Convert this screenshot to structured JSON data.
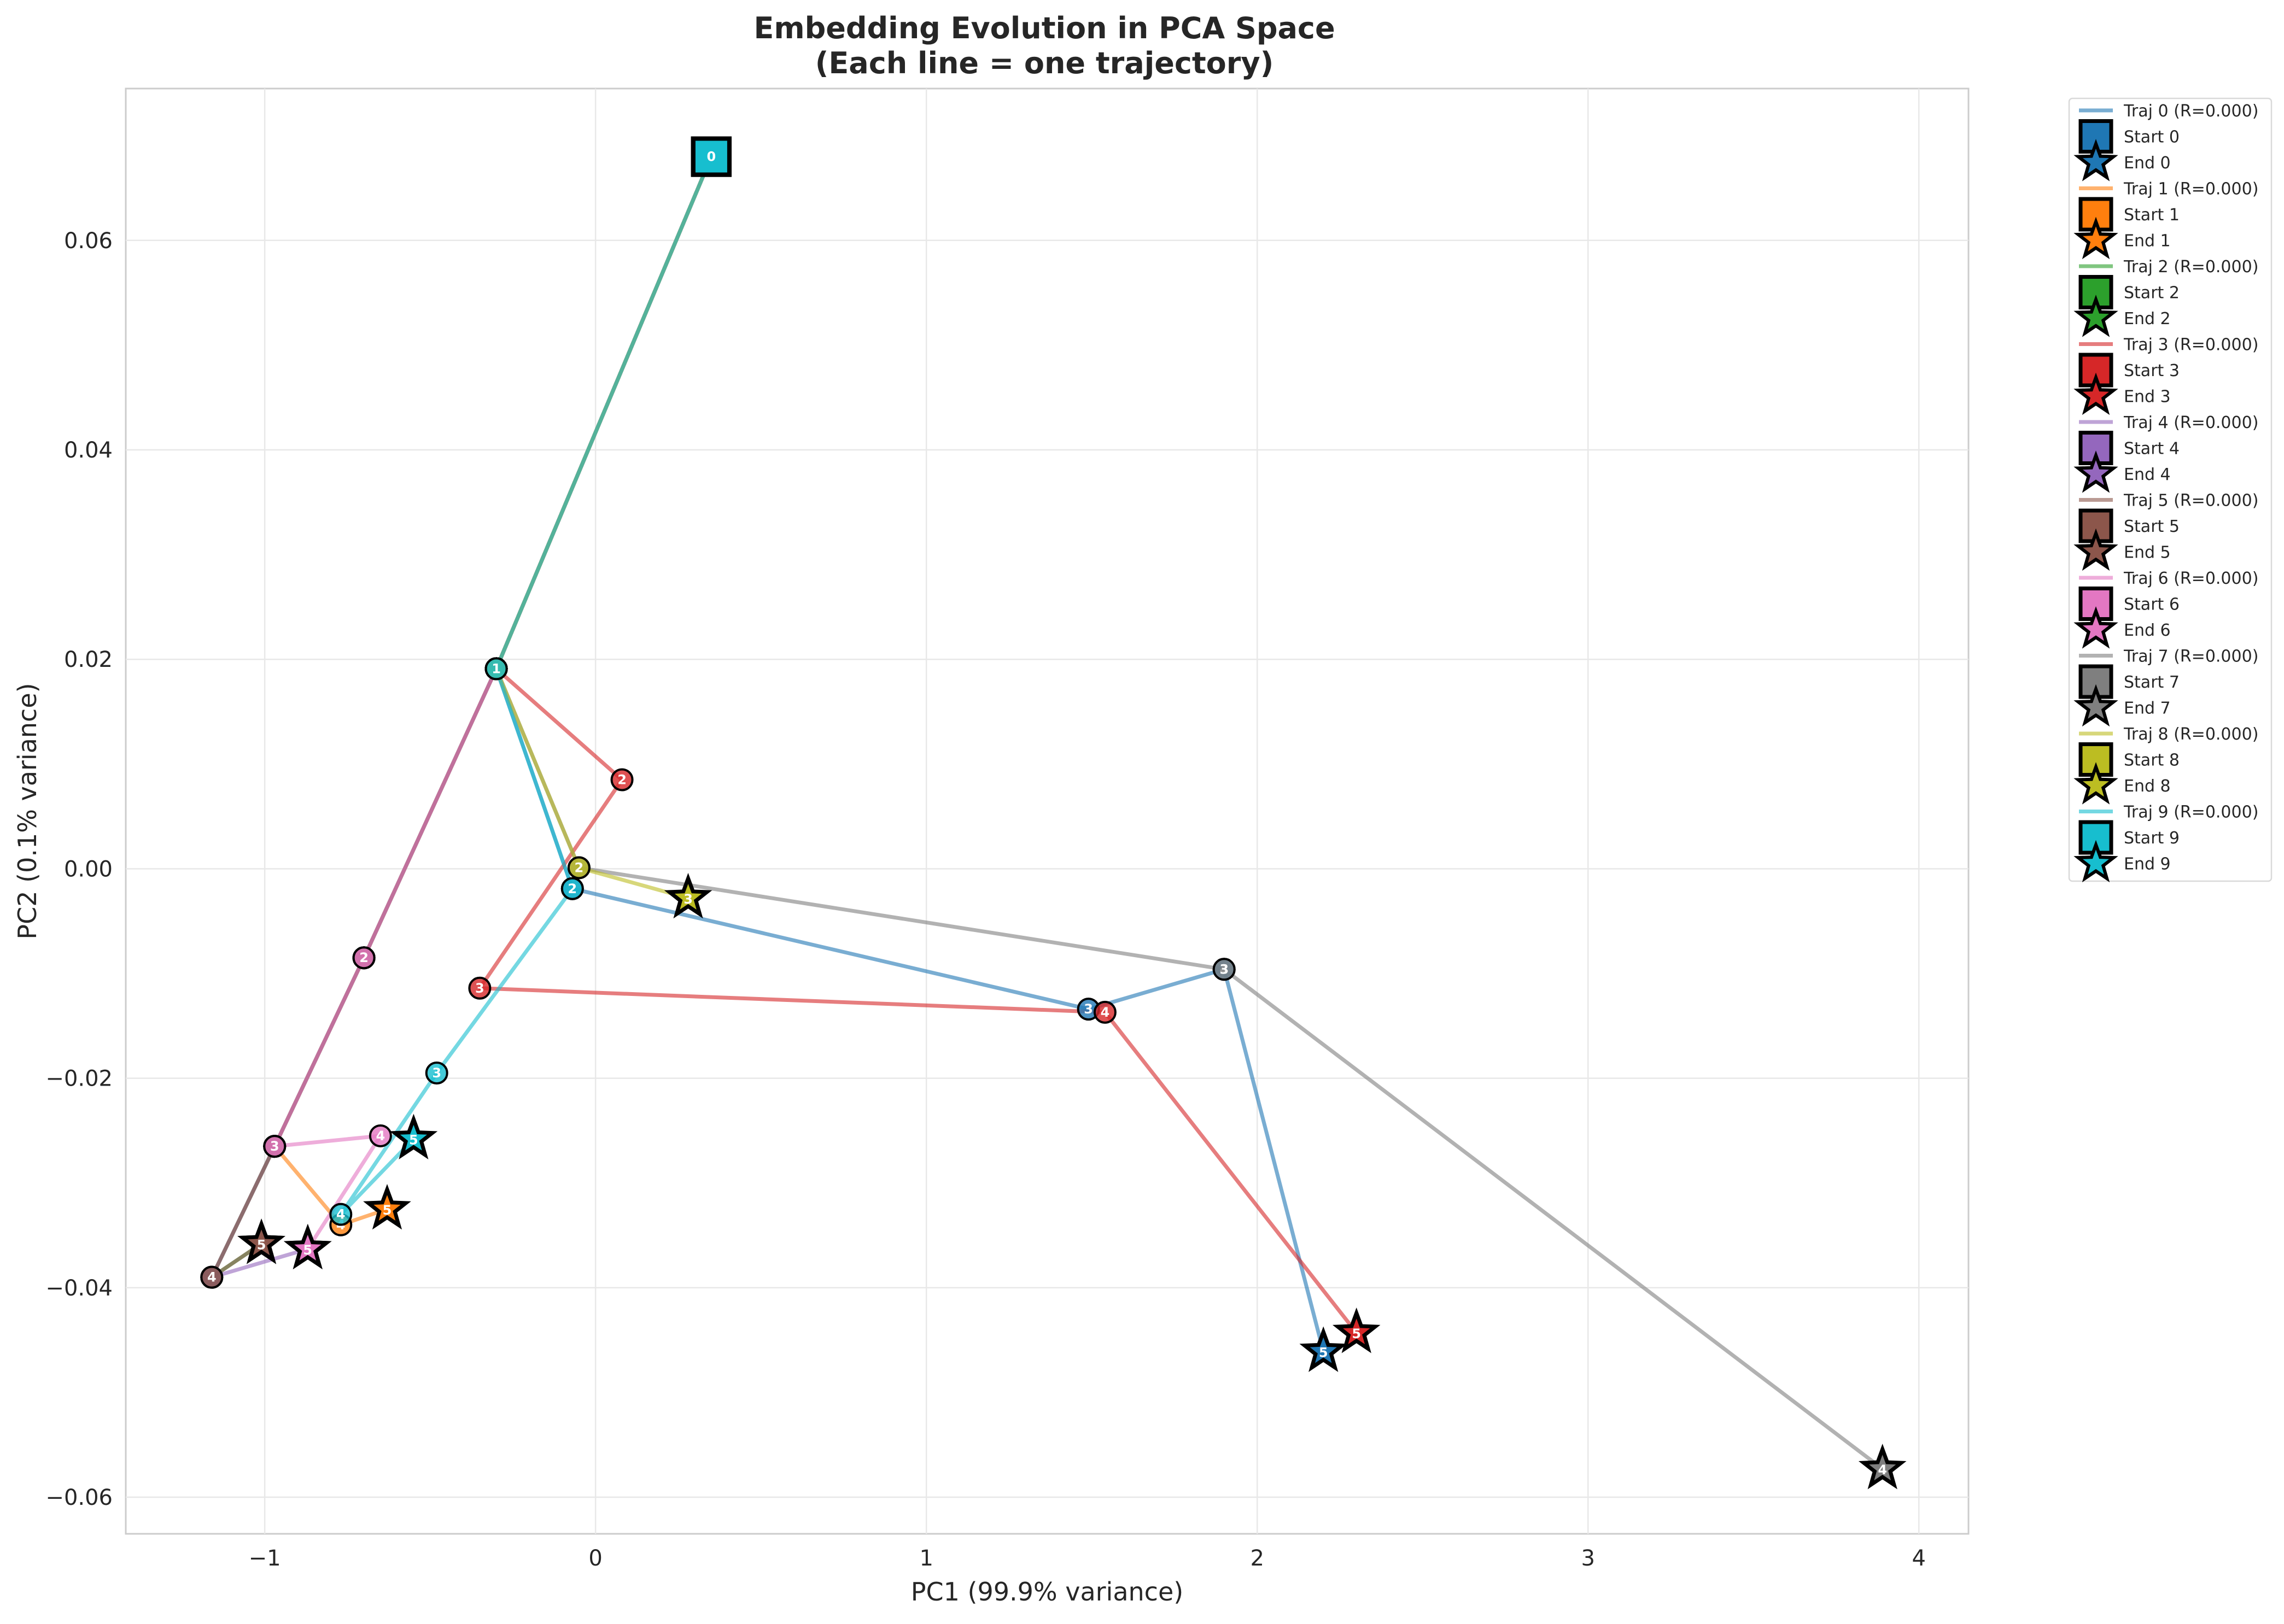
{
  "chart_data": {
    "type": "line",
    "title": "Embedding Evolution in PCA Space",
    "subtitle": "(Each line = one trajectory)",
    "xlabel": "PC1 (99.9% variance)",
    "ylabel": "PC2 (0.1% variance)",
    "xlim": [
      -1.42,
      4.15
    ],
    "ylim": [
      -0.0635,
      0.0745
    ],
    "xticks": [
      -1,
      0,
      1,
      2,
      3,
      4
    ],
    "xtick_labels": [
      "−1",
      "0",
      "1",
      "2",
      "3",
      "4"
    ],
    "yticks": [
      -0.06,
      -0.04,
      -0.02,
      0.0,
      0.02,
      0.04,
      0.06
    ],
    "ytick_labels": [
      "−0.06",
      "−0.04",
      "−0.02",
      "0.00",
      "0.02",
      "0.04",
      "0.06"
    ],
    "grid": true,
    "legend_position": "outside-right",
    "series": [
      {
        "name": "Traj 0 (R=0.000)",
        "start_label": "Start 0",
        "end_label": "End 0",
        "color": "#1f77b4",
        "x": [
          0.35,
          -0.3,
          -0.07,
          1.49,
          1.9,
          2.2
        ],
        "y": [
          0.068,
          0.0191,
          -0.0019,
          -0.0134,
          -0.0096,
          -0.0461
        ]
      },
      {
        "name": "Traj 1 (R=0.000)",
        "start_label": "Start 1",
        "end_label": "End 1",
        "color": "#ff7f0e",
        "x": [
          0.35,
          -0.3,
          -0.7,
          -0.97,
          -0.77,
          -0.63
        ],
        "y": [
          0.068,
          0.0191,
          -0.0085,
          -0.0265,
          -0.034,
          -0.0325
        ]
      },
      {
        "name": "Traj 2 (R=0.000)",
        "start_label": "Start 2",
        "end_label": "End 2",
        "color": "#2ca02c",
        "x": [
          0.35,
          -0.3,
          -0.7,
          -0.97,
          -1.16,
          -1.01
        ],
        "y": [
          0.068,
          0.0191,
          -0.0085,
          -0.0265,
          -0.039,
          -0.0358
        ]
      },
      {
        "name": "Traj 3 (R=0.000)",
        "start_label": "Start 3",
        "end_label": "End 3",
        "color": "#d62728",
        "x": [
          0.35,
          -0.3,
          0.08,
          -0.35,
          1.54,
          2.3
        ],
        "y": [
          0.068,
          0.0191,
          0.0085,
          -0.0114,
          -0.0137,
          -0.0443
        ]
      },
      {
        "name": "Traj 4 (R=0.000)",
        "start_label": "Start 4",
        "end_label": "End 4",
        "color": "#9467bd",
        "x": [
          0.35,
          -0.3,
          -0.7,
          -0.97,
          -1.16,
          -0.87
        ],
        "y": [
          0.068,
          0.0191,
          -0.0085,
          -0.0265,
          -0.039,
          -0.0363
        ]
      },
      {
        "name": "Traj 5 (R=0.000)",
        "start_label": "Start 5",
        "end_label": "End 5",
        "color": "#8c564b",
        "x": [
          0.35,
          -0.3,
          -0.7,
          -0.97,
          -1.16,
          -1.01
        ],
        "y": [
          0.068,
          0.0191,
          -0.0085,
          -0.0265,
          -0.039,
          -0.0358
        ]
      },
      {
        "name": "Traj 6 (R=0.000)",
        "start_label": "Start 6",
        "end_label": "End 6",
        "color": "#e377c2",
        "x": [
          0.35,
          -0.3,
          -0.7,
          -0.97,
          -0.65,
          -0.87
        ],
        "y": [
          0.068,
          0.0191,
          -0.0085,
          -0.0265,
          -0.0255,
          -0.0363
        ]
      },
      {
        "name": "Traj 7 (R=0.000)",
        "start_label": "Start 7",
        "end_label": "End 7",
        "color": "#7f7f7f",
        "x": [
          0.35,
          -0.3,
          -0.05,
          1.9,
          3.89
        ],
        "y": [
          0.068,
          0.0191,
          0.0001,
          -0.0096,
          -0.0573
        ]
      },
      {
        "name": "Traj 8 (R=0.000)",
        "start_label": "Start 8",
        "end_label": "End 8",
        "color": "#bcbd22",
        "x": [
          0.35,
          -0.3,
          -0.05,
          0.28
        ],
        "y": [
          0.068,
          0.0191,
          0.0001,
          -0.0028
        ]
      },
      {
        "name": "Traj 9 (R=0.000)",
        "start_label": "Start 9",
        "end_label": "End 9",
        "color": "#17becf",
        "x": [
          0.35,
          -0.3,
          -0.07,
          -0.48,
          -0.77,
          -0.55
        ],
        "y": [
          0.068,
          0.0191,
          -0.0019,
          -0.0195,
          -0.033,
          -0.0258
        ]
      }
    ]
  }
}
